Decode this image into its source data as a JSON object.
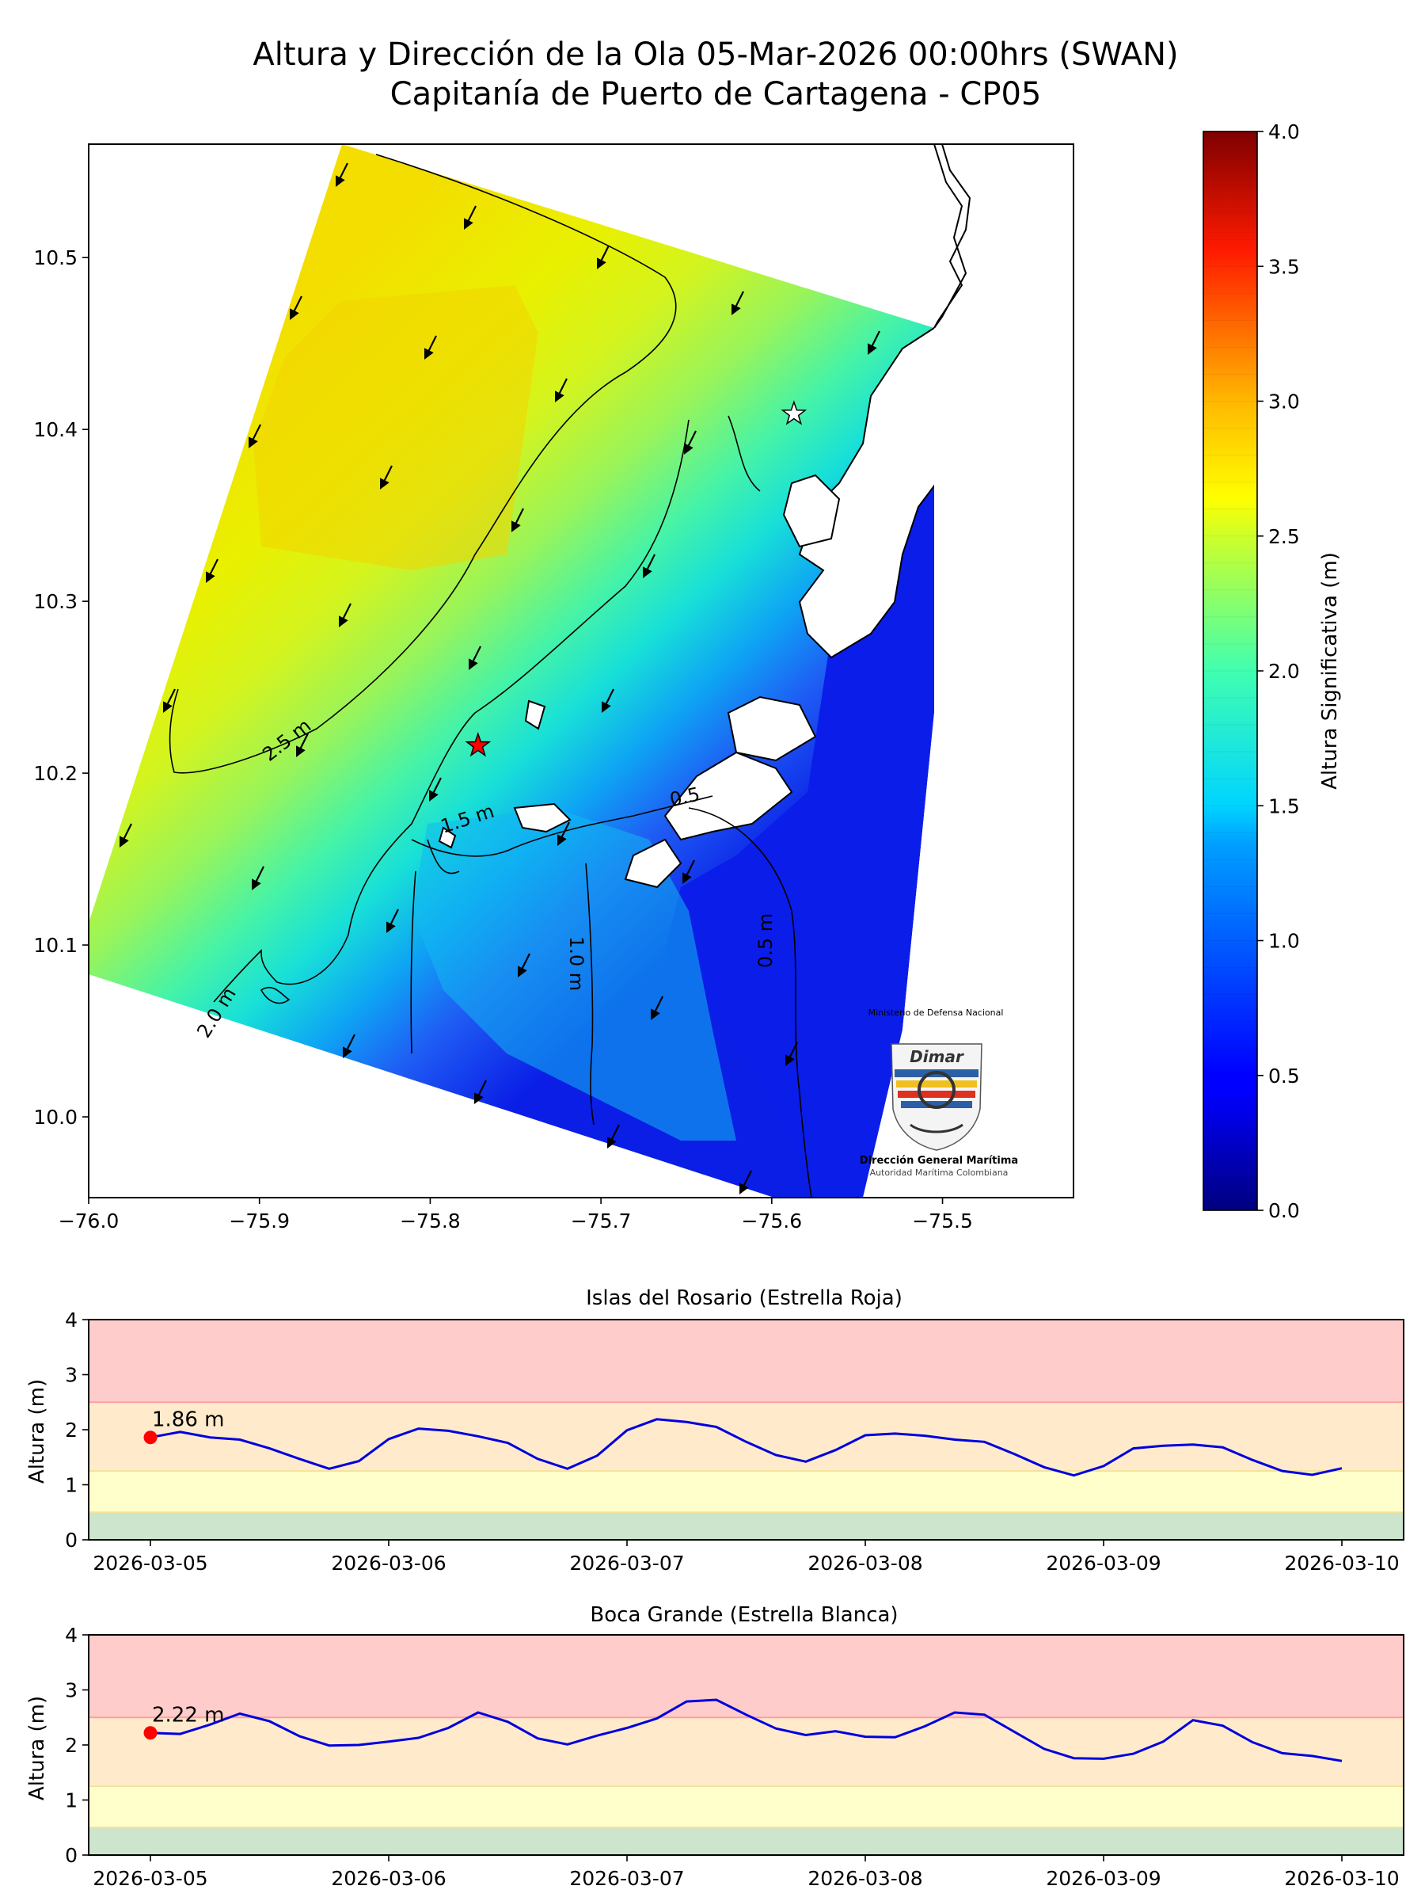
{
  "title_line1": "Altura y Dirección de la Ola 05-Mar-2026 00:00hrs (SWAN)",
  "title_line2": "Capitanía de Puerto de Cartagena - CP05",
  "logo": {
    "top_text": "Ministerio de Defensa Nacional",
    "brand": "Dimar",
    "name": "Dirección General Marítima",
    "tagline": "Autoridad Marítima Colombiana"
  },
  "chart_data": [
    {
      "type": "heatmap",
      "x_ticks": [
        "−76.0",
        "−75.9",
        "−75.8",
        "−75.7",
        "−75.6",
        "−75.5"
      ],
      "y_ticks": [
        "10.0",
        "10.1",
        "10.2",
        "10.3",
        "10.4",
        "10.5"
      ],
      "xlim": [
        -76.0,
        -75.4233
      ],
      "ylim": [
        9.953,
        10.566
      ],
      "colorbar": {
        "label": "Altura Significativa (m)",
        "range": [
          0.0,
          4.0
        ],
        "ticks": [
          "0.0",
          "0.5",
          "1.0",
          "1.5",
          "2.0",
          "2.5",
          "3.0",
          "3.5",
          "4.0"
        ],
        "colormap": "jet"
      },
      "contour_labels": [
        "2.5 m",
        "2.0 m",
        "1.5 m",
        "1.0 m",
        "0.5 m",
        "0.5"
      ],
      "markers": [
        {
          "name": "Islas del Rosario",
          "lon": -75.772,
          "lat": 10.216,
          "color": "#ff0000"
        },
        {
          "name": "Boca Grande",
          "lon": -75.587,
          "lat": 10.409,
          "color": "#ffffff"
        }
      ]
    },
    {
      "type": "line",
      "title": "Islas del Rosario (Estrella Roja)",
      "ylabel": "Altura (m)",
      "ylim": [
        0,
        4
      ],
      "y_ticks": [
        "0",
        "1",
        "2",
        "3",
        "4"
      ],
      "x_ticks": [
        "2026-03-05",
        "2026-03-06",
        "2026-03-07",
        "2026-03-08",
        "2026-03-09",
        "2026-03-10"
      ],
      "bands": [
        {
          "from": 0,
          "to": 0.5,
          "color": "#cce5cc"
        },
        {
          "from": 0.5,
          "to": 1.25,
          "color": "#ffffcc"
        },
        {
          "from": 1.25,
          "to": 2.5,
          "color": "#ffebcc"
        },
        {
          "from": 2.5,
          "to": 4,
          "color": "#ffcccc"
        }
      ],
      "current": {
        "label": "1.86 m",
        "value": 1.86
      },
      "x_days": [
        0,
        0.125,
        0.25,
        0.375,
        0.5,
        0.625,
        0.75,
        0.875,
        1.0,
        1.125,
        1.25,
        1.375,
        1.5,
        1.625,
        1.75,
        1.875,
        2.0,
        2.125,
        2.25,
        2.375,
        2.5,
        2.625,
        2.75,
        2.875,
        3.0,
        3.125,
        3.25,
        3.375,
        3.5,
        3.625,
        3.75,
        3.875,
        4.0,
        4.125,
        4.25,
        4.375,
        4.5,
        4.625,
        4.75,
        4.875,
        5.0
      ],
      "values": [
        1.86,
        1.96,
        1.86,
        1.82,
        1.66,
        1.47,
        1.29,
        1.43,
        1.83,
        2.02,
        1.98,
        1.88,
        1.76,
        1.47,
        1.29,
        1.53,
        1.99,
        2.19,
        2.14,
        2.05,
        1.78,
        1.54,
        1.42,
        1.63,
        1.9,
        1.93,
        1.89,
        1.82,
        1.78,
        1.56,
        1.32,
        1.17,
        1.34,
        1.66,
        1.71,
        1.73,
        1.68,
        1.45,
        1.25,
        1.18,
        1.3
      ]
    },
    {
      "type": "line",
      "title": "Boca Grande (Estrella Blanca)",
      "ylabel": "Altura (m)",
      "ylim": [
        0,
        4
      ],
      "y_ticks": [
        "0",
        "1",
        "2",
        "3",
        "4"
      ],
      "x_ticks": [
        "2026-03-05",
        "2026-03-06",
        "2026-03-07",
        "2026-03-08",
        "2026-03-09",
        "2026-03-10"
      ],
      "bands": [
        {
          "from": 0,
          "to": 0.5,
          "color": "#cce5cc"
        },
        {
          "from": 0.5,
          "to": 1.25,
          "color": "#ffffcc"
        },
        {
          "from": 1.25,
          "to": 2.5,
          "color": "#ffebcc"
        },
        {
          "from": 2.5,
          "to": 4,
          "color": "#ffcccc"
        }
      ],
      "current": {
        "label": "2.22 m",
        "value": 2.22
      },
      "x_days": [
        0,
        0.125,
        0.25,
        0.375,
        0.5,
        0.625,
        0.75,
        0.875,
        1.0,
        1.125,
        1.25,
        1.375,
        1.5,
        1.625,
        1.75,
        1.875,
        2.0,
        2.125,
        2.25,
        2.375,
        2.5,
        2.625,
        2.75,
        2.875,
        3.0,
        3.125,
        3.25,
        3.375,
        3.5,
        3.625,
        3.75,
        3.875,
        4.0,
        4.125,
        4.25,
        4.375,
        4.5,
        4.625,
        4.75,
        4.875,
        5.0
      ],
      "values": [
        2.22,
        2.2,
        2.37,
        2.57,
        2.43,
        2.16,
        1.99,
        2.0,
        2.06,
        2.13,
        2.31,
        2.59,
        2.42,
        2.12,
        2.01,
        2.17,
        2.31,
        2.48,
        2.79,
        2.82,
        2.55,
        2.3,
        2.18,
        2.25,
        2.15,
        2.14,
        2.34,
        2.59,
        2.55,
        2.24,
        1.93,
        1.76,
        1.75,
        1.84,
        2.06,
        2.45,
        2.35,
        2.05,
        1.85,
        1.8,
        1.71
      ]
    }
  ]
}
